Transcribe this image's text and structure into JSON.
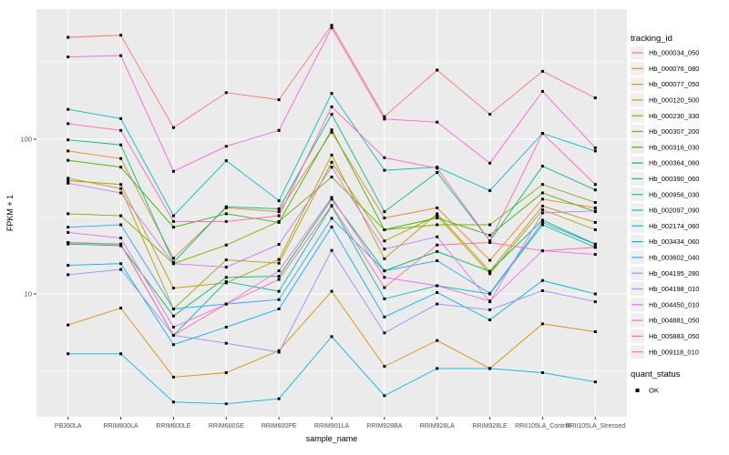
{
  "chart_data": {
    "type": "line",
    "title": "",
    "xlabel": "sample_name",
    "ylabel": "FPKM + 1",
    "y_scale": "log10",
    "ylim": [
      1.6,
      700
    ],
    "y_major_ticks": [
      10,
      100
    ],
    "y_tick_labels": [
      "10",
      "100"
    ],
    "y_minor_ticks": [
      3.162,
      31.62,
      316.2
    ],
    "grid": "on",
    "legend_position": "right",
    "legend_title": "tracking_id",
    "legend2_title": "quant_status",
    "quant_status_label": "OK",
    "categories": [
      "PB350LA",
      "RRIM600LA",
      "RRIM600LE",
      "RRIM600SE",
      "RRIM600PE",
      "RRIM901LA",
      "RRIM928BA",
      "RRIM928LA",
      "RRIM928LE",
      "RRII105LA_Control",
      "RRII105LA_Stressed"
    ],
    "series": [
      {
        "name": "Hb_000034_050",
        "color": "#F8766D",
        "values": [
          456,
          470,
          119,
          200,
          180,
          545,
          140,
          280,
          145,
          275,
          185
        ]
      },
      {
        "name": "Hb_000076_080",
        "color": "#EA8331",
        "values": [
          84,
          75,
          17,
          36,
          34,
          111,
          31,
          36,
          16.5,
          41,
          36
        ]
      },
      {
        "name": "Hb_000077_050",
        "color": "#D89000",
        "values": [
          6.3,
          8.1,
          2.9,
          3.1,
          4.3,
          10.4,
          3.4,
          5.0,
          3.3,
          6.4,
          5.7
        ]
      },
      {
        "name": "Hb_000120_500",
        "color": "#C09B00",
        "values": [
          54,
          51,
          10.9,
          11.8,
          16.7,
          79,
          16.9,
          33,
          14,
          37,
          29
        ]
      },
      {
        "name": "Hb_000230_330",
        "color": "#A3A500",
        "values": [
          56,
          48,
          8.0,
          16.6,
          15.8,
          71,
          22,
          32,
          13.5,
          35,
          26
        ]
      },
      {
        "name": "Hb_000307_200",
        "color": "#7CAE00",
        "values": [
          33,
          32,
          15.7,
          20.7,
          29.4,
          57,
          26,
          28,
          28,
          51,
          39
        ]
      },
      {
        "name": "Hb_000316_030",
        "color": "#39B600",
        "values": [
          73,
          66,
          27,
          33,
          29,
          115,
          26,
          31,
          24,
          45,
          34
        ]
      },
      {
        "name": "Hb_000364_060",
        "color": "#00BB4E",
        "values": [
          21,
          20.5,
          7.2,
          12.8,
          13,
          41,
          14.1,
          18.8,
          14,
          30,
          21
        ]
      },
      {
        "name": "Hb_000390_060",
        "color": "#00BF7D",
        "values": [
          99,
          92,
          16,
          36.6,
          35.5,
          145,
          34,
          61,
          22,
          67,
          47
        ]
      },
      {
        "name": "Hb_000956_030",
        "color": "#00C1A3",
        "values": [
          21.5,
          21,
          5.4,
          12,
          10.4,
          37,
          9.3,
          11.3,
          10,
          28,
          20
        ]
      },
      {
        "name": "Hb_002097_090",
        "color": "#00BFC4",
        "values": [
          156,
          136,
          32,
          72.6,
          40,
          198,
          63,
          66,
          46.6,
          109,
          84
        ]
      },
      {
        "name": "Hb_002174_060",
        "color": "#00BAE0",
        "values": [
          4.1,
          4.1,
          2.0,
          1.95,
          2.1,
          5.3,
          2.2,
          3.3,
          3.3,
          3.1,
          2.7
        ]
      },
      {
        "name": "Hb_003434_060",
        "color": "#00B0F6",
        "values": [
          15.3,
          15.7,
          4.7,
          6.1,
          8.0,
          27.1,
          7.1,
          10.2,
          6.8,
          12.2,
          10.0
        ]
      },
      {
        "name": "Hb_003602_040",
        "color": "#35A2FF",
        "values": [
          27,
          28,
          8.0,
          8.6,
          9.2,
          30.8,
          14.1,
          16.4,
          10.1,
          29,
          20.9
        ]
      },
      {
        "name": "Hb_004195_280",
        "color": "#9590FF",
        "values": [
          13.3,
          14.4,
          5.4,
          4.8,
          4.2,
          19.1,
          5.6,
          8.6,
          7.9,
          10.5,
          8.9
        ]
      },
      {
        "name": "Hb_004198_010",
        "color": "#C77CFF",
        "values": [
          52,
          45,
          15.7,
          14.9,
          20.9,
          66,
          19.5,
          23.4,
          8.9,
          33.4,
          34.4
        ]
      },
      {
        "name": "Hb_004450_010",
        "color": "#E76BF3",
        "values": [
          25,
          23,
          6.1,
          8.6,
          14.1,
          42,
          12.8,
          11.3,
          9.0,
          19,
          18
        ]
      },
      {
        "name": "Hb_004881_050",
        "color": "#FA62DB",
        "values": [
          340,
          347,
          62,
          90,
          114,
          525,
          135,
          129,
          70,
          204,
          88
        ]
      },
      {
        "name": "Hb_005883_050",
        "color": "#FF62BC",
        "values": [
          126,
          114,
          29.4,
          29.4,
          32,
          162,
          76,
          65,
          22,
          109,
          51
        ]
      },
      {
        "name": "Hb_009118_010",
        "color": "#FF6A98",
        "values": [
          21.4,
          20.9,
          5.4,
          8.6,
          12.4,
          37.3,
          11.0,
          20.7,
          21.5,
          19.0,
          20.0
        ]
      }
    ],
    "colors": {
      "panel_background": "#EBEBEB",
      "grid": "#FFFFFF",
      "axis_text": "#4D4D4D",
      "axis_title": "#000000",
      "marker": "#000000",
      "legend_key_background": "#EFEFEF",
      "page_background": "#FFFFFF"
    }
  }
}
